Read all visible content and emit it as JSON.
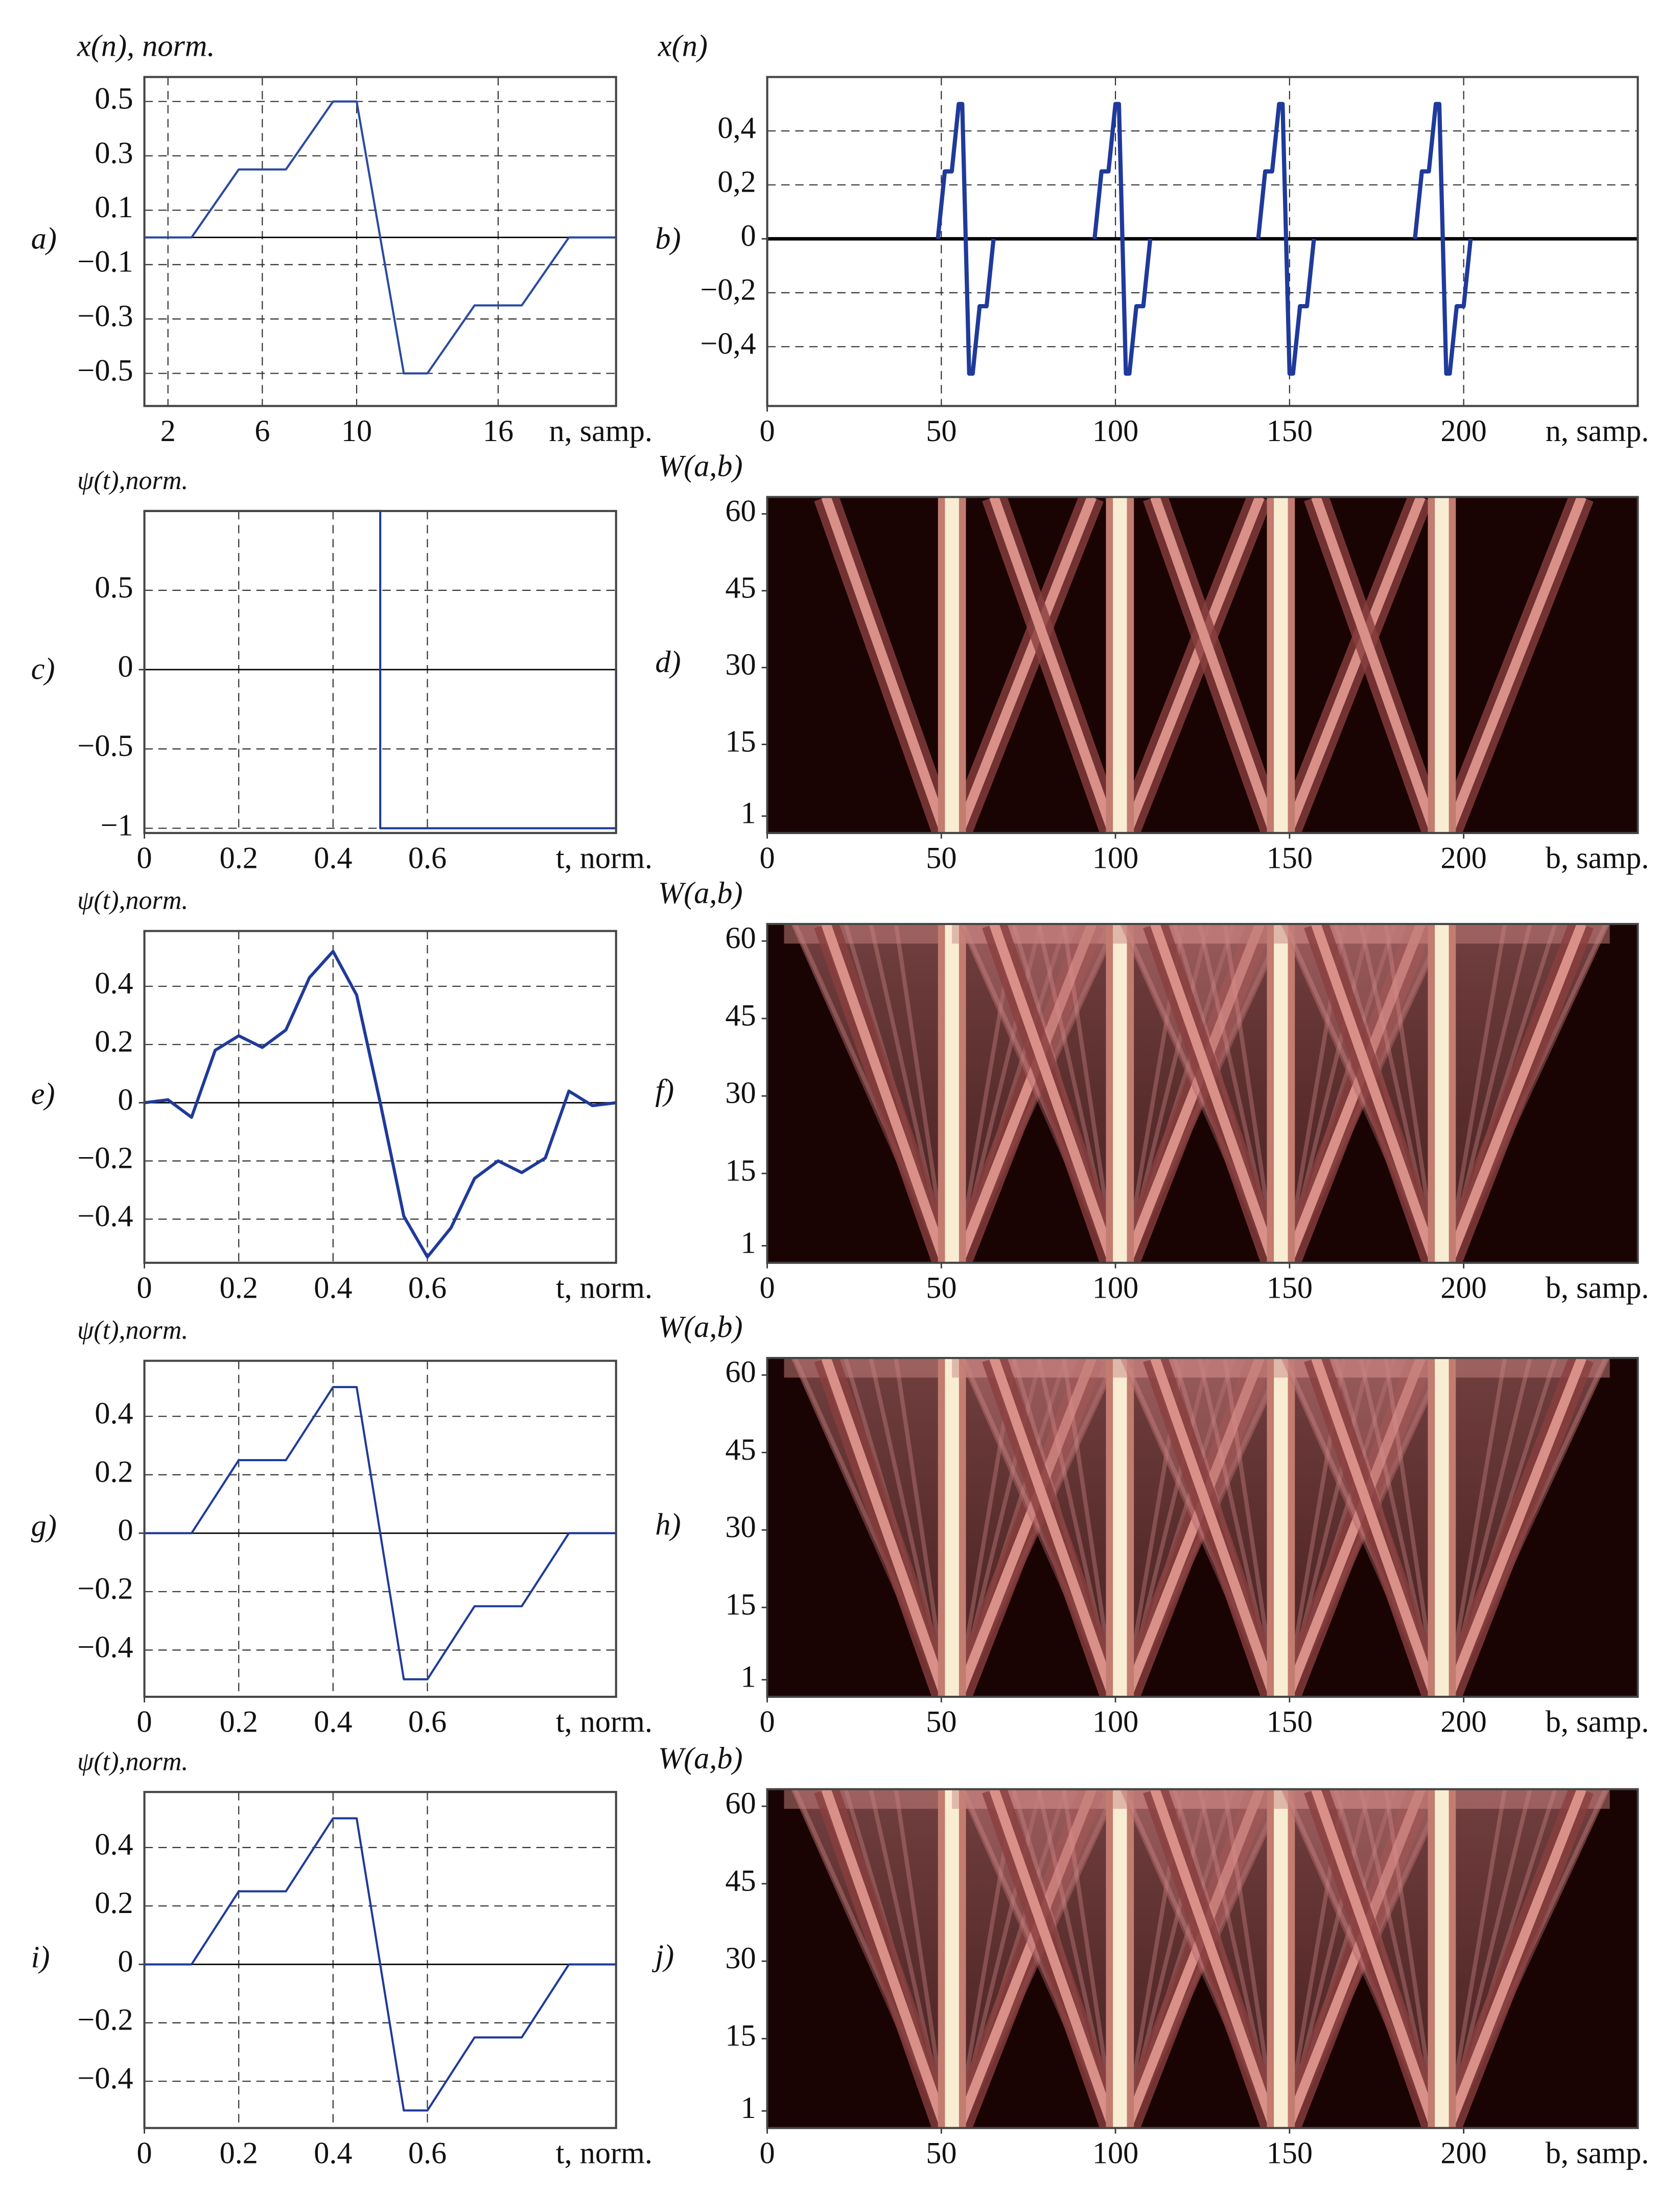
{
  "chart_data": [
    {
      "type": "line",
      "panel_label": "a)",
      "y_label": "x(n), norm.",
      "x_label": "n, samp.",
      "x": [
        1,
        3,
        5,
        7,
        9,
        10,
        12,
        13,
        15,
        17,
        19,
        21
      ],
      "series": [
        {
          "color": "#2a4aa0",
          "values": [
            0,
            0,
            0.25,
            0.25,
            0.5,
            0.5,
            -0.5,
            -0.5,
            -0.25,
            -0.25,
            0,
            0
          ]
        }
      ],
      "xlim": [
        1,
        21
      ],
      "xticks": [
        2,
        6,
        10,
        16
      ],
      "ylim": [
        -0.62,
        0.59
      ],
      "yticks": [
        0.5,
        0.3,
        0.1,
        {
          "value": -0.1,
          "label": "−0.1"
        },
        {
          "value": -0.3,
          "label": "−0.3"
        },
        {
          "value": -0.5,
          "label": "−0.5"
        }
      ],
      "grid": true
    },
    {
      "type": "line",
      "panel_label": "b)",
      "y_label": "x(n)",
      "x_label": "n, samp.",
      "series": [
        {
          "color": "#1f3a9a",
          "x": [
            49,
            51,
            53,
            55,
            56,
            58,
            59,
            61,
            63,
            65
          ],
          "values": [
            0,
            0.25,
            0.25,
            0.5,
            0.5,
            -0.5,
            -0.5,
            -0.25,
            -0.25,
            0
          ]
        },
        {
          "color": "#1f3a9a",
          "x": [
            94,
            96,
            98,
            100,
            101,
            103,
            104,
            106,
            108,
            110
          ],
          "values": [
            0,
            0.25,
            0.25,
            0.5,
            0.5,
            -0.5,
            -0.5,
            -0.25,
            -0.25,
            0
          ]
        },
        {
          "color": "#1f3a9a",
          "x": [
            141,
            143,
            145,
            147,
            148,
            150,
            151,
            153,
            155,
            157
          ],
          "values": [
            0,
            0.25,
            0.25,
            0.5,
            0.5,
            -0.5,
            -0.5,
            -0.25,
            -0.25,
            0
          ]
        },
        {
          "color": "#1f3a9a",
          "x": [
            186,
            188,
            190,
            192,
            193,
            195,
            196,
            198,
            200,
            202
          ],
          "values": [
            0,
            0.25,
            0.25,
            0.5,
            0.5,
            -0.5,
            -0.5,
            -0.25,
            -0.25,
            0
          ]
        }
      ],
      "xlim": [
        0,
        250
      ],
      "xticks": [
        0,
        50,
        100,
        150,
        200
      ],
      "ylim": [
        -0.62,
        0.6
      ],
      "yticks": [
        {
          "value": 0.4,
          "label": "0,4"
        },
        {
          "value": 0.2,
          "label": "0,2"
        },
        0,
        {
          "value": -0.2,
          "label": "−0,2"
        },
        {
          "value": -0.4,
          "label": "−0,4"
        }
      ],
      "grid": true
    },
    {
      "type": "line",
      "panel_label": "c)",
      "y_label": "ψ(t),norm.",
      "x_label": "t, norm.",
      "x": [
        0,
        0.5,
        0.5,
        1,
        1
      ],
      "series": [
        {
          "color": "#1f3a9a",
          "values": [
            1,
            1,
            -1,
            -1,
            0
          ]
        }
      ],
      "xlim": [
        0,
        1
      ],
      "xticks": [
        0,
        0.2,
        0.4,
        0.6
      ],
      "ylim": [
        -1.03,
        1.0
      ],
      "yticks": [
        0.5,
        0,
        {
          "value": -0.5,
          "label": "−0.5"
        },
        {
          "value": -1,
          "label": "−1"
        }
      ],
      "grid": true
    },
    {
      "type": "heatmap",
      "panel_label": "d)",
      "y_label": "W(a,b)",
      "x_label": "b, samp.",
      "xlim": [
        0,
        250
      ],
      "xticks": [
        0,
        50,
        100,
        150,
        200
      ],
      "ylim": [
        -2.3,
        63.3
      ],
      "yticks": [
        60,
        45,
        30,
        15,
        1
      ]
    },
    {
      "type": "line",
      "panel_label": "e)",
      "y_label": "ψ(t),norm.",
      "x_label": "t, norm.",
      "x": [
        0,
        0.05,
        0.1,
        0.15,
        0.2,
        0.25,
        0.3,
        0.35,
        0.4,
        0.45,
        0.5,
        0.55,
        0.6,
        0.65,
        0.7,
        0.75,
        0.8,
        0.85,
        0.9,
        0.95,
        1
      ],
      "series": [
        {
          "color": "#1f3a9a",
          "values": [
            0,
            0.01,
            -0.05,
            0.18,
            0.23,
            0.19,
            0.25,
            0.43,
            0.52,
            0.37,
            0,
            -0.39,
            -0.53,
            -0.43,
            -0.26,
            -0.2,
            -0.24,
            -0.19,
            0.04,
            -0.01,
            0
          ]
        }
      ],
      "xlim": [
        0,
        1
      ],
      "xticks": [
        0,
        0.2,
        0.4,
        0.6
      ],
      "ylim": [
        -0.55,
        0.59
      ],
      "yticks": [
        0.4,
        0.2,
        0,
        {
          "value": -0.2,
          "label": "−0.2"
        },
        {
          "value": -0.4,
          "label": "−0.4"
        }
      ],
      "grid": true
    },
    {
      "type": "heatmap",
      "panel_label": "f)",
      "y_label": "W(a,b)",
      "x_label": "b, samp.",
      "xlim": [
        0,
        250
      ],
      "xticks": [
        0,
        50,
        100,
        150,
        200
      ],
      "ylim": [
        -2.3,
        63.3
      ],
      "yticks": [
        60,
        45,
        30,
        15,
        1
      ]
    },
    {
      "type": "line",
      "panel_label": "g)",
      "y_label": "ψ(t),norm.",
      "x_label": "t, norm.",
      "x": [
        0,
        0.1,
        0.2,
        0.3,
        0.4,
        0.45,
        0.55,
        0.6,
        0.7,
        0.8,
        0.9,
        1
      ],
      "series": [
        {
          "color": "#1f3a9a",
          "values": [
            0,
            0,
            0.25,
            0.25,
            0.5,
            0.5,
            -0.5,
            -0.5,
            -0.25,
            -0.25,
            0,
            0
          ]
        }
      ],
      "xlim": [
        0,
        1
      ],
      "xticks": [
        0,
        0.2,
        0.4,
        0.6
      ],
      "ylim": [
        -0.56,
        0.59
      ],
      "yticks": [
        0.4,
        0.2,
        0,
        {
          "value": -0.2,
          "label": "−0.2"
        },
        {
          "value": -0.4,
          "label": "−0.4"
        }
      ],
      "grid": true
    },
    {
      "type": "heatmap",
      "panel_label": "h)",
      "y_label": "W(a,b)",
      "x_label": "b, samp.",
      "xlim": [
        0,
        250
      ],
      "xticks": [
        0,
        50,
        100,
        150,
        200
      ],
      "ylim": [
        -2.3,
        63.3
      ],
      "yticks": [
        60,
        45,
        30,
        15,
        1
      ]
    },
    {
      "type": "line",
      "panel_label": "i)",
      "y_label": "ψ(t),norm.",
      "x_label": "t, norm.",
      "x": [
        0,
        0.1,
        0.2,
        0.3,
        0.4,
        0.45,
        0.55,
        0.6,
        0.7,
        0.8,
        0.9,
        1
      ],
      "series": [
        {
          "color": "#1f3a9a",
          "values": [
            0,
            0,
            0.25,
            0.25,
            0.5,
            0.5,
            -0.5,
            -0.5,
            -0.25,
            -0.25,
            0,
            0
          ]
        }
      ],
      "xlim": [
        0,
        1
      ],
      "xticks": [
        0,
        0.2,
        0.4,
        0.6
      ],
      "ylim": [
        -0.56,
        0.59
      ],
      "yticks": [
        0.4,
        0.2,
        0,
        {
          "value": -0.2,
          "label": "−0.2"
        },
        {
          "value": -0.4,
          "label": "−0.4"
        }
      ],
      "grid": true
    },
    {
      "type": "heatmap",
      "panel_label": "j)",
      "y_label": "W(a,b)",
      "x_label": "b, samp.",
      "xlim": [
        0,
        250
      ],
      "xticks": [
        0,
        50,
        100,
        150,
        200
      ],
      "ylim": [
        -2.3,
        63.3
      ],
      "yticks": [
        60,
        45,
        30,
        15,
        1
      ]
    }
  ]
}
